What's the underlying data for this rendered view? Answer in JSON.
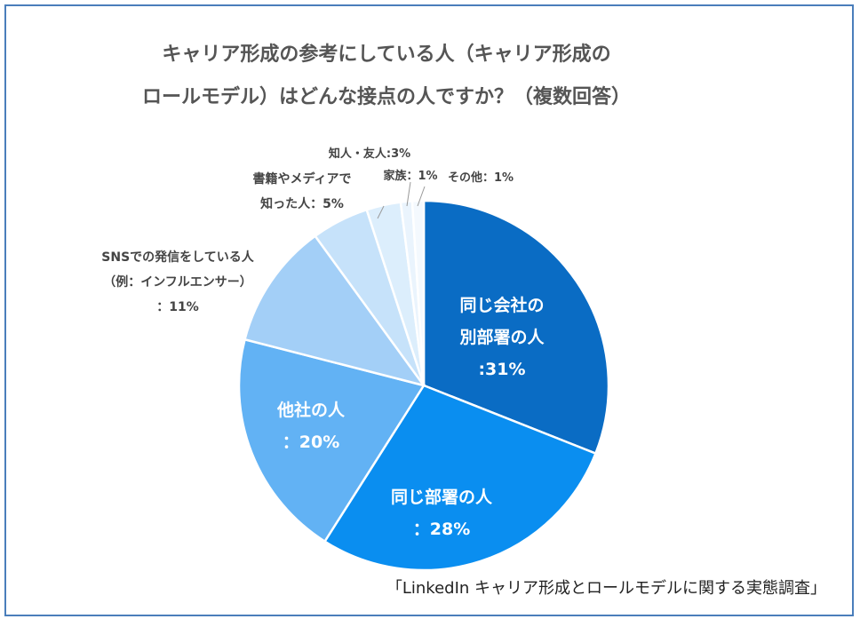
{
  "chart_data": {
    "type": "pie",
    "title": "キャリア形成の参考にしている人（キャリア形成の\nロールモデル）はどんな接点の人ですか？（複数回答）",
    "categories": [
      "同じ会社の\n別部署の人",
      "同じ部署の人",
      "他社の人",
      "SNSでの発信をしている人\n（例：インフルエンサー）",
      "書籍やメディアで\n知った人",
      "知人・友人",
      "家族",
      "その他"
    ],
    "values": [
      31,
      28,
      20,
      11,
      5,
      3,
      1,
      1
    ],
    "value_labels": [
      ":31%",
      "：28%",
      "：20%",
      "：11%",
      "：5%",
      ":3%",
      "：1%",
      "：1%"
    ],
    "colors": [
      "#0a6cc4",
      "#0a8ef0",
      "#62b2f4",
      "#a3cff7",
      "#c6e2fa",
      "#dceefc",
      "#eaf4fd",
      "#f4f9fe"
    ],
    "source": "「LinkedIn キャリア形成とロールモデルに関する実態調査」"
  }
}
